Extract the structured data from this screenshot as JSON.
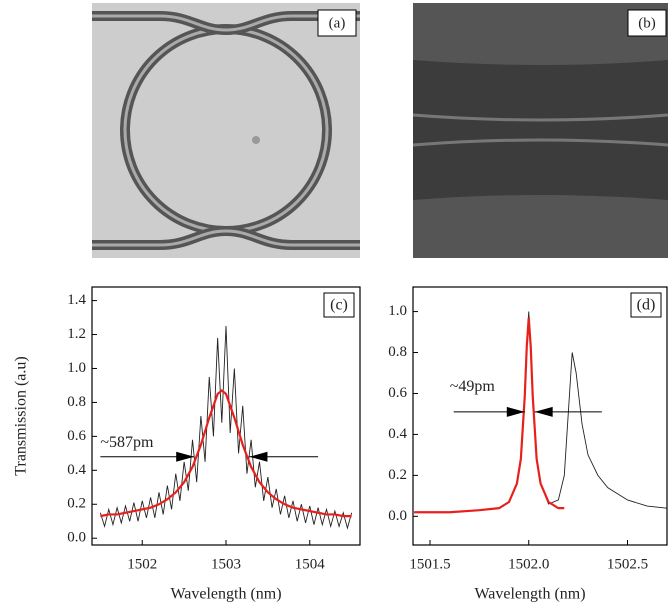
{
  "images": [
    {
      "label": "(a)"
    },
    {
      "label": "(b)"
    }
  ],
  "chart_data": [
    {
      "type": "line",
      "panel_label": "(c)",
      "ylabel": "Transmission (a.u)",
      "xlabel": "Wavelength (nm)",
      "xlim": [
        1501.4,
        1504.6
      ],
      "ylim": [
        -0.04,
        1.48
      ],
      "xticks": [
        1502,
        1503,
        1504
      ],
      "yticks": [
        {
          "value": 0,
          "label": "0.0"
        },
        0.2,
        0.4,
        0.6,
        0.8,
        {
          "value": 1,
          "label": "1.0"
        },
        1.2,
        1.4
      ],
      "series": [
        {
          "color": "#222222",
          "x": [
            1501.5,
            1501.55,
            1501.6,
            1501.65,
            1501.7,
            1501.75,
            1501.8,
            1501.85,
            1501.9,
            1501.95,
            1502.0,
            1502.05,
            1502.1,
            1502.15,
            1502.2,
            1502.25,
            1502.3,
            1502.35,
            1502.4,
            1502.45,
            1502.5,
            1502.55,
            1502.6,
            1502.65,
            1502.7,
            1502.75,
            1502.8,
            1502.85,
            1502.9,
            1502.95,
            1503.0,
            1503.05,
            1503.1,
            1503.15,
            1503.2,
            1503.25,
            1503.3,
            1503.35,
            1503.4,
            1503.45,
            1503.5,
            1503.55,
            1503.6,
            1503.65,
            1503.7,
            1503.75,
            1503.8,
            1503.85,
            1503.9,
            1503.95,
            1504.0,
            1504.05,
            1504.1,
            1504.15,
            1504.2,
            1504.25,
            1504.3,
            1504.35,
            1504.4,
            1504.45,
            1504.5
          ],
          "values": [
            0.15,
            0.07,
            0.17,
            0.08,
            0.18,
            0.09,
            0.19,
            0.1,
            0.21,
            0.1,
            0.22,
            0.12,
            0.24,
            0.12,
            0.27,
            0.14,
            0.31,
            0.17,
            0.38,
            0.22,
            0.45,
            0.28,
            0.58,
            0.33,
            0.72,
            0.45,
            0.95,
            0.6,
            1.18,
            0.68,
            1.25,
            0.62,
            1.0,
            0.5,
            0.78,
            0.38,
            0.58,
            0.3,
            0.45,
            0.22,
            0.36,
            0.18,
            0.29,
            0.14,
            0.25,
            0.12,
            0.22,
            0.1,
            0.2,
            0.09,
            0.19,
            0.08,
            0.18,
            0.08,
            0.17,
            0.07,
            0.16,
            0.07,
            0.15,
            0.06,
            0.15
          ]
        },
        {
          "color": "#e8201c",
          "x": [
            1501.5,
            1501.6,
            1501.7,
            1501.8,
            1501.9,
            1502.0,
            1502.1,
            1502.2,
            1502.3,
            1502.4,
            1502.5,
            1502.6,
            1502.7,
            1502.8,
            1502.9,
            1502.95,
            1503.0,
            1503.1,
            1503.2,
            1503.3,
            1503.4,
            1503.5,
            1503.6,
            1503.7,
            1503.8,
            1503.9,
            1504.0,
            1504.1,
            1504.2,
            1504.3,
            1504.4,
            1504.5
          ],
          "values": [
            0.13,
            0.14,
            0.14,
            0.15,
            0.16,
            0.17,
            0.18,
            0.2,
            0.23,
            0.27,
            0.33,
            0.42,
            0.55,
            0.71,
            0.85,
            0.87,
            0.85,
            0.71,
            0.55,
            0.42,
            0.33,
            0.27,
            0.23,
            0.2,
            0.18,
            0.17,
            0.16,
            0.15,
            0.14,
            0.14,
            0.13,
            0.13
          ]
        }
      ],
      "annotation": {
        "text": "~587pm",
        "x": 1501.5,
        "y": 0.56
      },
      "arrows": [
        {
          "x": [
            1501.5,
            1502.62
          ],
          "y": 0.48
        },
        {
          "x": [
            1504.1,
            1503.28
          ],
          "y": 0.48
        }
      ]
    },
    {
      "type": "line",
      "panel_label": "(d)",
      "xlabel": "Wavelength (nm)",
      "xlim": [
        1501.414,
        1502.7
      ],
      "ylim": [
        -0.14,
        1.12
      ],
      "xticks": [
        1501.5,
        {
          "value": 1502,
          "label": "1502.0"
        },
        1502.5
      ],
      "yticks": [
        {
          "value": 0,
          "label": "0.0"
        },
        0.2,
        0.4,
        0.6,
        0.8,
        {
          "value": 1,
          "label": "1.0"
        }
      ],
      "series": [
        {
          "color": "#222222",
          "x": [
            1501.42,
            1501.6,
            1501.75,
            1501.85,
            1501.9,
            1501.94,
            1501.96,
            1501.98,
            1501.99,
            1502.0,
            1502.01,
            1502.02,
            1502.04,
            1502.06,
            1502.1,
            1502.15,
            1502.18,
            1502.2,
            1502.22,
            1502.24,
            1502.27,
            1502.3,
            1502.35,
            1502.4,
            1502.5,
            1502.6,
            1502.7
          ],
          "values": [
            0.02,
            0.02,
            0.03,
            0.04,
            0.07,
            0.16,
            0.28,
            0.59,
            0.83,
            1.0,
            0.83,
            0.59,
            0.28,
            0.16,
            0.06,
            0.08,
            0.2,
            0.5,
            0.8,
            0.7,
            0.45,
            0.3,
            0.2,
            0.14,
            0.08,
            0.05,
            0.04
          ]
        },
        {
          "color": "#e8201c",
          "x": [
            1501.42,
            1501.6,
            1501.75,
            1501.85,
            1501.9,
            1501.94,
            1501.96,
            1501.98,
            1501.99,
            1502.0,
            1502.01,
            1502.02,
            1502.04,
            1502.06,
            1502.1,
            1502.15,
            1502.18
          ],
          "values": [
            0.02,
            0.02,
            0.03,
            0.04,
            0.07,
            0.16,
            0.28,
            0.59,
            0.83,
            0.97,
            0.83,
            0.59,
            0.28,
            0.16,
            0.07,
            0.04,
            0.04
          ]
        }
      ],
      "annotation": {
        "text": "~49pm",
        "x": 1501.6,
        "y": 0.63
      },
      "arrows": [
        {
          "x": [
            1501.62,
            1501.98
          ],
          "y": 0.51
        },
        {
          "x": [
            1502.37,
            1502.03
          ],
          "y": 0.51
        }
      ]
    }
  ]
}
